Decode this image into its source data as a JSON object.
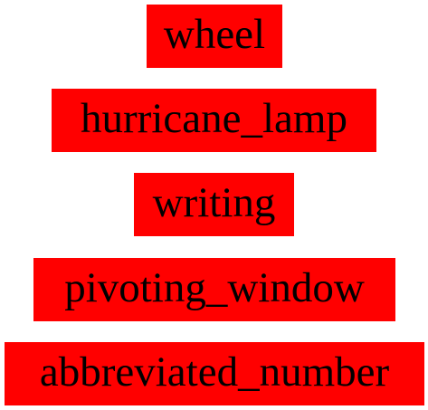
{
  "colors": {
    "box_background": "#ff0000",
    "text": "#000000",
    "page_background": "#ffffff"
  },
  "labels": [
    "wheel",
    "hurricane_lamp",
    "writing",
    "pivoting_window",
    "abbreviated_number"
  ]
}
